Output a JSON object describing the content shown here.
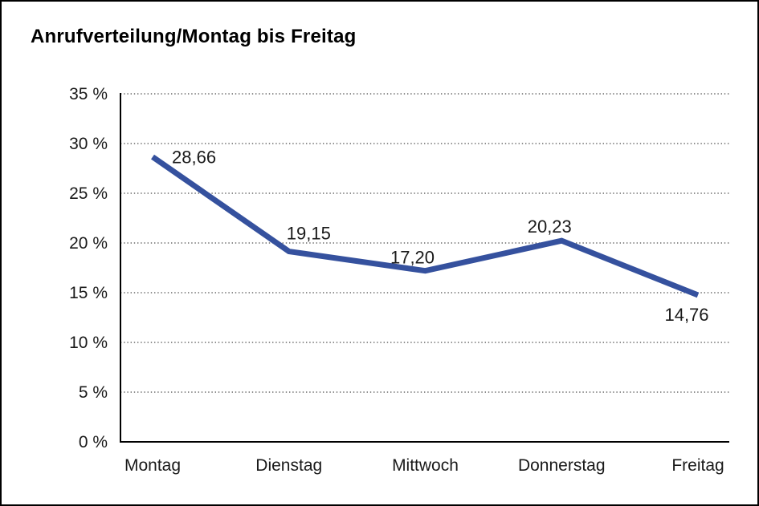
{
  "title": "Anrufverteilung/Montag bis Freitag",
  "colors": {
    "line": "#35519E",
    "grid": "#4a4a4a",
    "axis": "#000000",
    "text": "#1a1a1a",
    "background": "#ffffff",
    "frame_border": "#000000"
  },
  "chart_data": {
    "type": "line",
    "title": "Anrufverteilung/Montag bis Freitag",
    "categories": [
      "Montag",
      "Dienstag",
      "Mittwoch",
      "Donnerstag",
      "Freitag"
    ],
    "values": [
      28.66,
      19.15,
      17.2,
      20.23,
      14.76
    ],
    "value_labels": [
      "28,66",
      "19,15",
      "17,20",
      "20,23",
      "14,76"
    ],
    "series_name": "Anrufverteilung",
    "xlabel": "",
    "ylabel": "",
    "ylim": [
      0,
      35
    ],
    "ytick_step": 5,
    "ytick_labels": [
      "0 %",
      "5 %",
      "10 %",
      "15 %",
      "20 %",
      "25 %",
      "30 %",
      "35 %"
    ],
    "grid": "horizontal-dotted",
    "legend_position": "none",
    "decimal_separator": ","
  }
}
